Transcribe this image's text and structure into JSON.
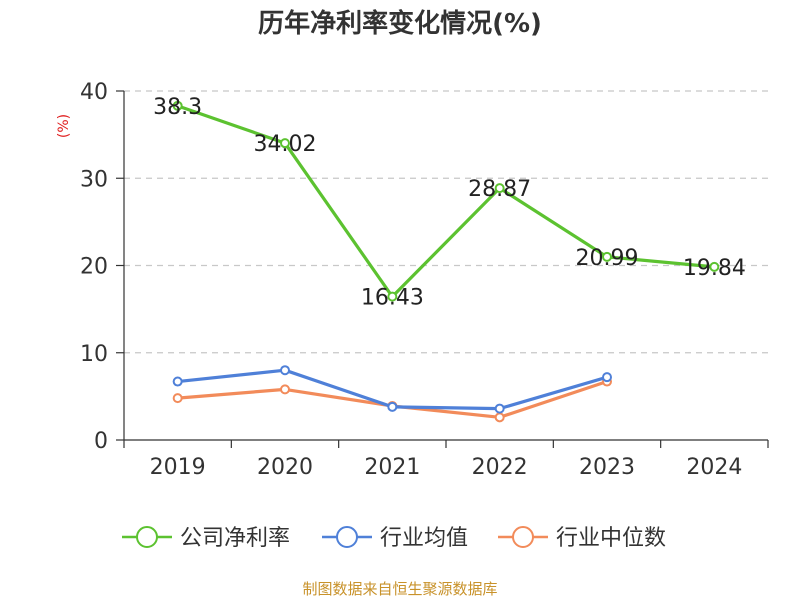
{
  "chart_data": {
    "type": "line",
    "title": "历年净利率变化情况(%)",
    "ylabel": "(%)",
    "xlabel": "",
    "categories": [
      "2019",
      "2020",
      "2021",
      "2022",
      "2023",
      "2024"
    ],
    "ylim": [
      0,
      40
    ],
    "yticks": [
      0,
      10,
      20,
      30,
      40
    ],
    "grid": true,
    "legend_position": "bottom",
    "series": [
      {
        "name": "公司净利率",
        "color": "#5cc230",
        "values": [
          38.3,
          34.02,
          16.43,
          28.87,
          20.99,
          19.84
        ],
        "labels": [
          "38.3",
          "34.02",
          "16.43",
          "28.87",
          "20.99",
          "19.84"
        ]
      },
      {
        "name": "行业均值",
        "color": "#4f80d8",
        "values": [
          6.7,
          8.0,
          3.8,
          3.6,
          7.2,
          null
        ]
      },
      {
        "name": "行业中位数",
        "color": "#f28b5a",
        "values": [
          4.8,
          5.8,
          3.9,
          2.6,
          6.7,
          null
        ]
      }
    ]
  },
  "footer": {
    "source": "制图数据来自恒生聚源数据库"
  }
}
